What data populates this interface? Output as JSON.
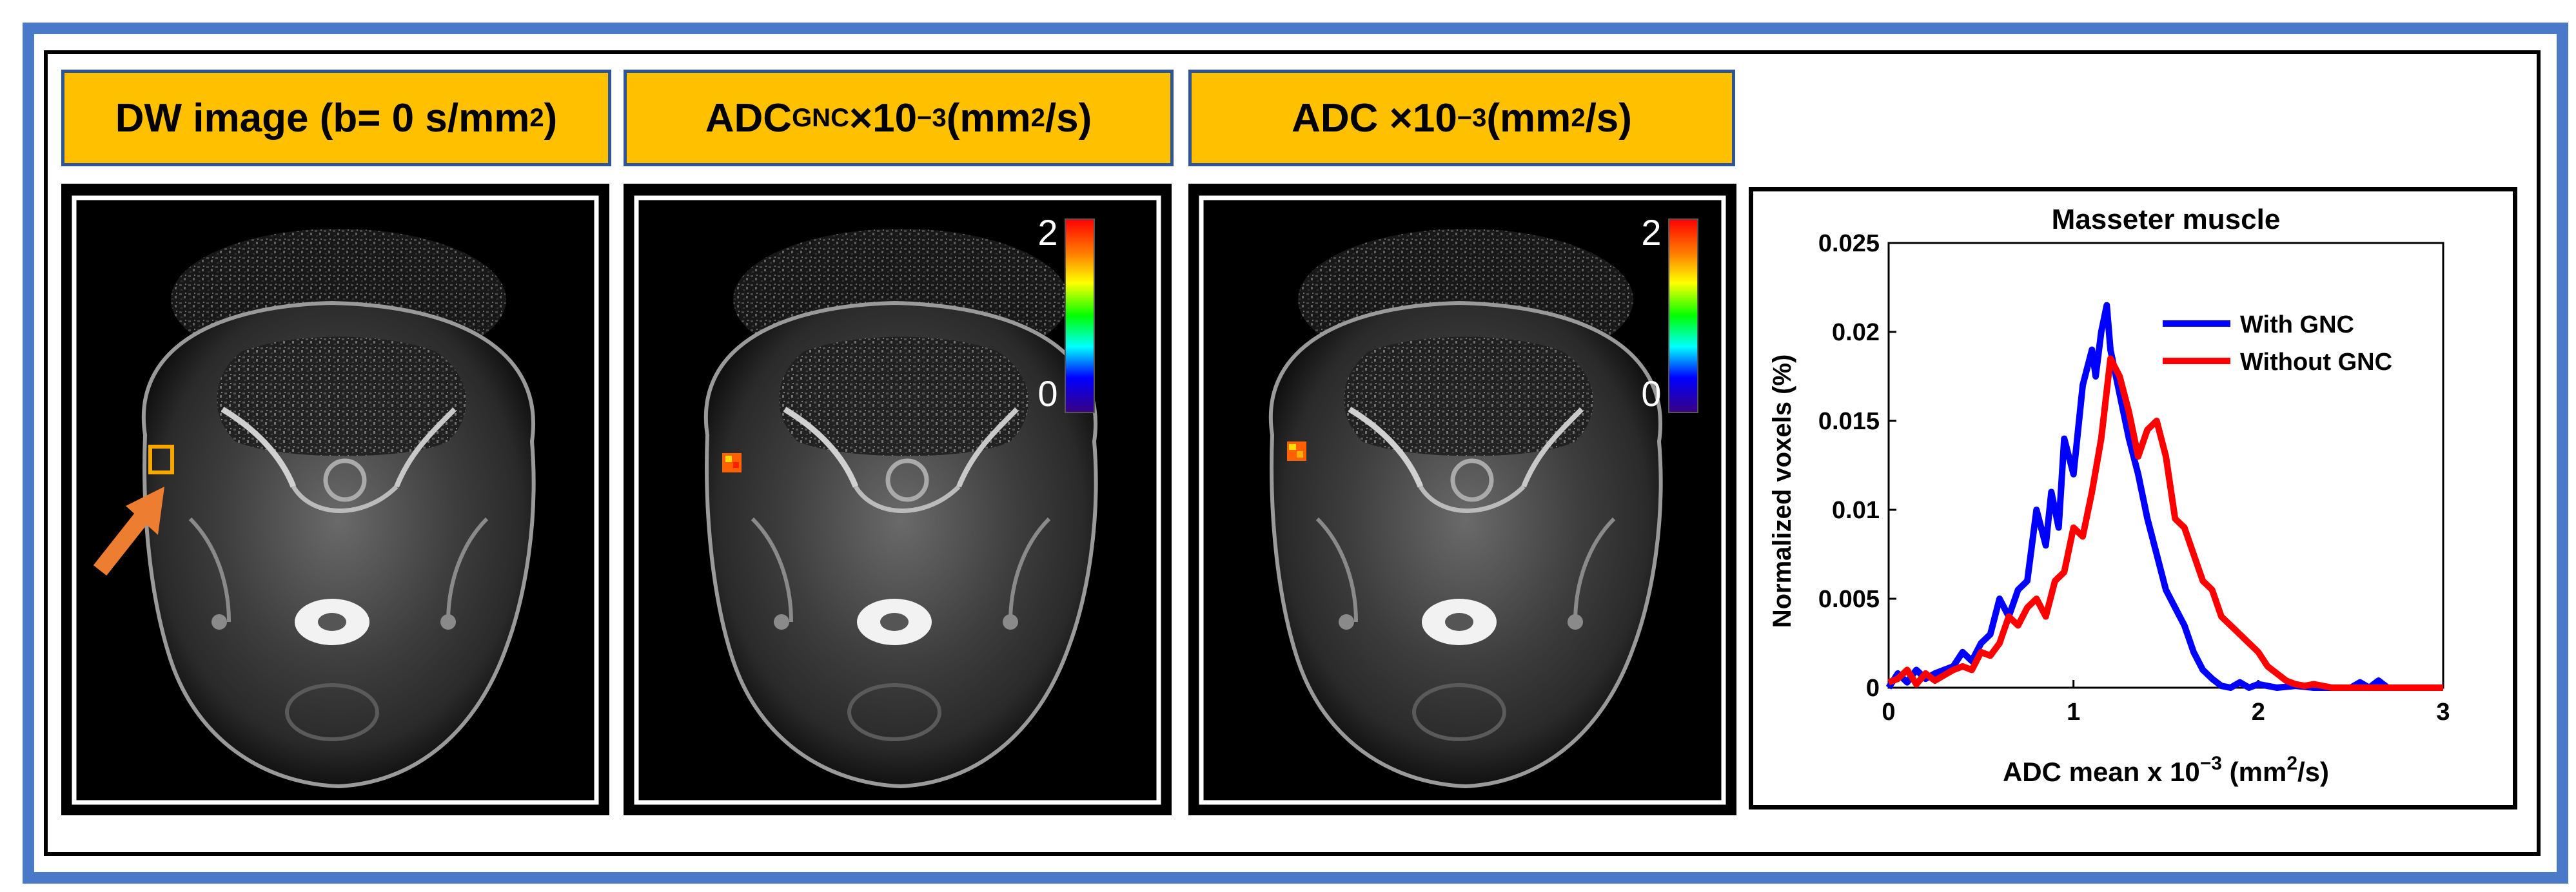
{
  "headers": {
    "dw": {
      "main": "DW image (b= 0 s/mm",
      "sup": "2",
      "end": ")"
    },
    "adc_gnc": {
      "pre": "ADC",
      "sub": "GNC",
      "mid": "×10",
      "sup1": "−3",
      "mid2": " (mm",
      "sup2": "2",
      "end": "/s)"
    },
    "adc": {
      "pre": "ADC ×10",
      "sup1": "−3",
      "mid2": " (mm",
      "sup2": "2",
      "end": "/s)"
    }
  },
  "colorbar": {
    "max_label": "2",
    "min_label": "0"
  },
  "roi_color": "#f5a800",
  "arrow_color": "#ed7d31",
  "chart_data": {
    "type": "line",
    "title": "Masseter muscle",
    "xlabel": "ADC mean x 10",
    "xlabel_sup": "−3",
    "xlabel_unit": " (mm",
    "xlabel_unit_sup": "2",
    "xlabel_unit_end": "/s)",
    "ylabel": "Normalized voxels (%)",
    "xlim": [
      0,
      3
    ],
    "ylim": [
      0,
      0.025
    ],
    "xticks": [
      "0",
      "1",
      "2",
      "3"
    ],
    "yticks": [
      "0",
      "0.005",
      "0.01",
      "0.015",
      "0.02",
      "0.025"
    ],
    "legend_position": "top-right",
    "series": [
      {
        "name": "With GNC",
        "color": "#0000ff",
        "x": [
          0,
          0.05,
          0.1,
          0.15,
          0.2,
          0.25,
          0.3,
          0.35,
          0.4,
          0.45,
          0.5,
          0.55,
          0.6,
          0.65,
          0.7,
          0.75,
          0.8,
          0.85,
          0.88,
          0.92,
          0.95,
          1.0,
          1.05,
          1.1,
          1.12,
          1.15,
          1.18,
          1.2,
          1.25,
          1.3,
          1.35,
          1.4,
          1.45,
          1.5,
          1.55,
          1.6,
          1.65,
          1.7,
          1.75,
          1.8,
          1.85,
          1.9,
          1.95,
          2.0,
          2.1,
          2.2,
          2.3,
          2.4,
          2.5,
          2.55,
          2.6,
          2.65,
          2.7,
          2.8,
          2.9,
          3.0
        ],
        "y": [
          0,
          0.0008,
          0.0003,
          0.001,
          0.0005,
          0.0008,
          0.001,
          0.0012,
          0.002,
          0.0015,
          0.0025,
          0.003,
          0.005,
          0.004,
          0.0055,
          0.006,
          0.01,
          0.008,
          0.011,
          0.009,
          0.014,
          0.012,
          0.017,
          0.019,
          0.0175,
          0.02,
          0.0215,
          0.019,
          0.0165,
          0.014,
          0.012,
          0.0095,
          0.0075,
          0.0055,
          0.0045,
          0.0035,
          0.002,
          0.001,
          0.0005,
          0.0001,
          0,
          0.0003,
          0,
          0.0002,
          0,
          0.0001,
          0,
          0,
          0,
          0.0003,
          0,
          0.0004,
          0,
          0,
          0,
          0
        ]
      },
      {
        "name": "Without GNC",
        "color": "#ff0000",
        "x": [
          0,
          0.05,
          0.1,
          0.15,
          0.2,
          0.25,
          0.3,
          0.35,
          0.4,
          0.45,
          0.5,
          0.55,
          0.6,
          0.65,
          0.7,
          0.75,
          0.8,
          0.85,
          0.9,
          0.95,
          1.0,
          1.05,
          1.1,
          1.15,
          1.2,
          1.25,
          1.3,
          1.35,
          1.4,
          1.45,
          1.5,
          1.55,
          1.6,
          1.65,
          1.7,
          1.75,
          1.8,
          1.85,
          1.9,
          1.95,
          2.0,
          2.05,
          2.1,
          2.15,
          2.2,
          2.25,
          2.3,
          2.4,
          2.5,
          2.6,
          2.7,
          2.8,
          2.9,
          3.0
        ],
        "y": [
          0.0003,
          0.0005,
          0.001,
          0.0002,
          0.0008,
          0.0004,
          0.0007,
          0.001,
          0.0012,
          0.001,
          0.002,
          0.0018,
          0.0025,
          0.004,
          0.0035,
          0.0045,
          0.005,
          0.004,
          0.006,
          0.0065,
          0.009,
          0.0085,
          0.011,
          0.014,
          0.0185,
          0.0175,
          0.0155,
          0.013,
          0.0145,
          0.015,
          0.013,
          0.0095,
          0.009,
          0.0075,
          0.006,
          0.0055,
          0.004,
          0.0035,
          0.003,
          0.0025,
          0.002,
          0.0012,
          0.0008,
          0.0004,
          0.0002,
          0.0001,
          0.0002,
          0,
          0,
          0,
          0,
          0,
          0,
          0
        ]
      }
    ]
  }
}
